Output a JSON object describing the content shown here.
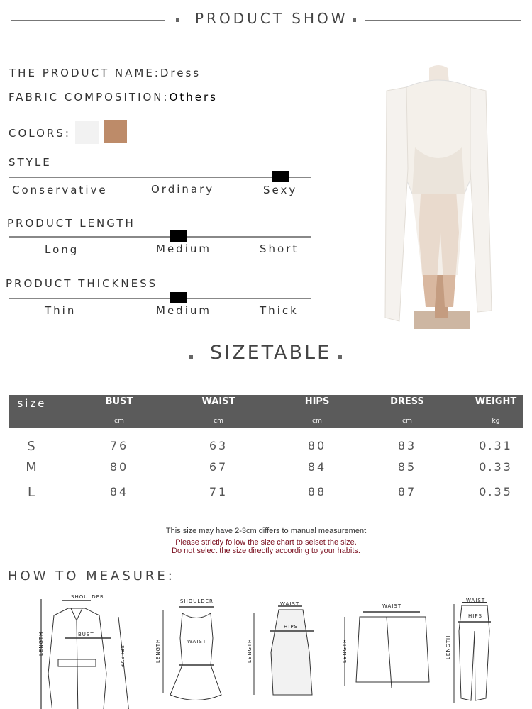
{
  "header": {
    "title": "PRODUCT SHOW"
  },
  "info": {
    "name_label": "THE PRODUCT NAME:",
    "name_value": "Dress",
    "fabric_label": "FABRIC COMPOSITION:",
    "fabric_value": "Others",
    "colors_label": "COLORS:",
    "colors": [
      "#f2f2f2",
      "#bd8b69"
    ]
  },
  "scales": [
    {
      "title": "STYLE",
      "options": [
        "Conservative",
        "Ordinary",
        "Sexy"
      ],
      "level": 0.9
    },
    {
      "title": "PRODUCT LENGTH",
      "options": [
        "Long",
        "Medium",
        "Short"
      ],
      "level": 0.56
    },
    {
      "title": "PRODUCT THICKNESS",
      "options": [
        "Thin",
        "Medium",
        "Thick"
      ],
      "level": 0.56
    }
  ],
  "sizetable": {
    "title": "SIZETABLE",
    "header_color": "#5b5b5b",
    "columns": [
      {
        "label": "size",
        "unit": ""
      },
      {
        "label": "BUST",
        "unit": "cm"
      },
      {
        "label": "WAIST",
        "unit": "cm"
      },
      {
        "label": "HIPS",
        "unit": "cm"
      },
      {
        "label": "DRESS",
        "unit": "cm"
      },
      {
        "label": "WEIGHT",
        "unit": "kg"
      }
    ],
    "rows": [
      [
        "S",
        "76",
        "63",
        "80",
        "83",
        "0.31"
      ],
      [
        "M",
        "80",
        "67",
        "84",
        "85",
        "0.33"
      ],
      [
        "L",
        "84",
        "71",
        "88",
        "87",
        "0.35"
      ]
    ]
  },
  "notes": {
    "line1": "This size may have 2-3cm differs to manual measurement",
    "line2": "Please strictly follow the size chart to selset the size.",
    "line3": "Do not select the size directly according to your habits.",
    "warn_color": "#7a1020"
  },
  "measure": {
    "title": "HOW TO MEASURE:",
    "shirt": {
      "shoulder": "SHOULDER",
      "bust": "BUST",
      "length": "LENGTH",
      "sleeve": "SELEVE"
    },
    "dress": {
      "shoulder": "SHOULDER",
      "waist": "WAIST",
      "length": "LENGTH"
    },
    "skirt": {
      "waist": "WAIST",
      "hips": "HIPS",
      "length": "LENGTH"
    },
    "shorts": {
      "waist": "WAIST",
      "length": "LENGTH"
    },
    "pants": {
      "waist": "WAIST",
      "hips": "HIPS",
      "length": "LENGTH"
    }
  }
}
